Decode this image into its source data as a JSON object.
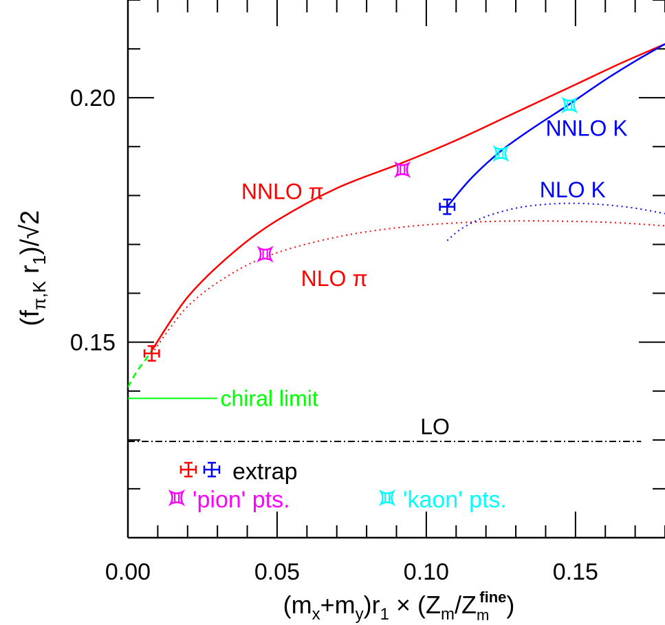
{
  "chart_data": {
    "type": "line",
    "title": "",
    "xlabel": "(m_x+m_y)r_1 × (Z_m/Z_m^fine)",
    "ylabel": "(f_{π,K} r_1)/√2",
    "xlim": [
      0.0,
      0.18
    ],
    "ylim": [
      0.11,
      0.22
    ],
    "x_ticks": [
      0.0,
      0.05,
      0.1,
      0.15
    ],
    "x_tick_labels": [
      "0.00",
      "0.05",
      "0.10",
      "0.15"
    ],
    "y_ticks": [
      0.15,
      0.2
    ],
    "y_tick_labels": [
      "0.15",
      "0.20"
    ],
    "grid": false,
    "series": [
      {
        "name": "NNLO π",
        "style": "solid",
        "color": "#ff0000",
        "x": [
          0.008,
          0.02,
          0.035,
          0.05,
          0.07,
          0.092,
          0.11,
          0.13,
          0.15,
          0.165,
          0.18
        ],
        "y": [
          0.1483,
          0.1592,
          0.1682,
          0.1749,
          0.1815,
          0.1867,
          0.1913,
          0.197,
          0.2027,
          0.207,
          0.211
        ]
      },
      {
        "name": "NLO π",
        "style": "dotted",
        "color": "#ff0000",
        "x": [
          0.008,
          0.02,
          0.035,
          0.05,
          0.07,
          0.09,
          0.11,
          0.13,
          0.15,
          0.165,
          0.18
        ],
        "y": [
          0.1476,
          0.1573,
          0.1641,
          0.1683,
          0.1715,
          0.1734,
          0.1744,
          0.1748,
          0.1747,
          0.1744,
          0.1738
        ]
      },
      {
        "name": "NNLO K",
        "style": "solid",
        "color": "#0000ff",
        "x": [
          0.107,
          0.115,
          0.125,
          0.135,
          0.148,
          0.16,
          0.17,
          0.18
        ],
        "y": [
          0.1777,
          0.1835,
          0.1891,
          0.1935,
          0.1987,
          0.2037,
          0.2075,
          0.211
        ]
      },
      {
        "name": "NLO K",
        "style": "dotted",
        "color": "#0000ff",
        "x": [
          0.107,
          0.112,
          0.12,
          0.13,
          0.14,
          0.15,
          0.16,
          0.17,
          0.18
        ],
        "y": [
          0.1708,
          0.1733,
          0.1757,
          0.1774,
          0.1782,
          0.1784,
          0.1781,
          0.1774,
          0.1763
        ]
      },
      {
        "name": "chiral extrapolation",
        "style": "dashed",
        "color": "#00ff00",
        "x": [
          0.0,
          0.003,
          0.006,
          0.008
        ],
        "y": [
          0.1408,
          0.144,
          0.1465,
          0.1483
        ]
      }
    ],
    "horizontal_lines": [
      {
        "name": "chiral limit",
        "y": 0.1385,
        "x_from": 0.0,
        "x_to": 0.03,
        "style": "solid",
        "color": "#00ff00"
      },
      {
        "name": "LO",
        "y": 0.1297,
        "x_from": 0.0,
        "x_to": 0.172,
        "style": "dashdot",
        "color": "#000000"
      }
    ],
    "points": [
      {
        "group": "extrap π",
        "x": 0.008,
        "y": 0.1477,
        "color": "#ff0000",
        "marker": "plus",
        "xerr": 0.002,
        "yerr": 0.0015
      },
      {
        "group": "extrap K",
        "x": 0.107,
        "y": 0.1777,
        "color": "#0000ff",
        "marker": "plus",
        "xerr": 0.002,
        "yerr": 0.0015
      },
      {
        "group": "pion",
        "x": 0.046,
        "y": 0.168,
        "color": "#ff00ff",
        "marker": "concave-square",
        "xerr": 0.0015,
        "yerr": 0.0015
      },
      {
        "group": "pion",
        "x": 0.092,
        "y": 0.1853,
        "color": "#ff00ff",
        "marker": "concave-square",
        "xerr": 0.0015,
        "yerr": 0.0015
      },
      {
        "group": "kaon",
        "x": 0.125,
        "y": 0.1886,
        "color": "#00ffff",
        "marker": "concave-square",
        "xerr": 0.0015,
        "yerr": 0.0015
      },
      {
        "group": "kaon",
        "x": 0.148,
        "y": 0.1985,
        "color": "#00ffff",
        "marker": "concave-square",
        "xerr": 0.0015,
        "yerr": 0.0015
      }
    ],
    "annotations": [
      {
        "text": "NNLO π",
        "x": 0.038,
        "y": 0.1808,
        "color": "#ff0000"
      },
      {
        "text": "NLO π",
        "x": 0.058,
        "y": 0.163,
        "color": "#ff0000"
      },
      {
        "text": "NNLO K",
        "x": 0.14,
        "y": 0.1938,
        "color": "#0000ff"
      },
      {
        "text": "NLO K",
        "x": 0.138,
        "y": 0.1812,
        "color": "#0000ff"
      },
      {
        "text": "chiral limit",
        "x": 0.031,
        "y": 0.1385,
        "color": "#00ff00"
      },
      {
        "text": "LO",
        "x": 0.098,
        "y": 0.1327,
        "color": "#000000"
      }
    ],
    "legend": {
      "placement": "bottom-left",
      "entries": [
        {
          "label": "extrap",
          "markers": [
            {
              "color": "#ff0000",
              "marker": "plus"
            },
            {
              "color": "#0000ff",
              "marker": "plus"
            }
          ]
        },
        {
          "label": "'pion' pts.",
          "markers": [
            {
              "color": "#ff00ff",
              "marker": "concave-square"
            }
          ]
        },
        {
          "label": "'kaon' pts.",
          "markers": [
            {
              "color": "#00ffff",
              "marker": "concave-square"
            }
          ]
        }
      ]
    }
  }
}
